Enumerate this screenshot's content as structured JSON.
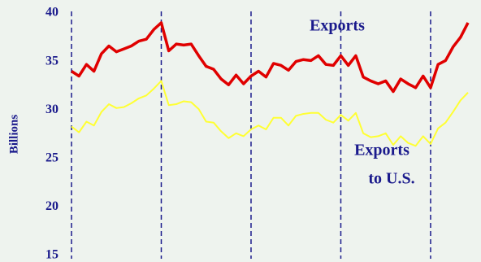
{
  "chart_data": {
    "type": "line",
    "ylabel": "Billions",
    "annotations": [
      "Exports",
      "Exports",
      "to U.S."
    ],
    "x": [
      0,
      1,
      2,
      3,
      4,
      5,
      6,
      7,
      8,
      9,
      10,
      11,
      12,
      13,
      14,
      15,
      16,
      17,
      18,
      19,
      20,
      21,
      22,
      23,
      24,
      25,
      26,
      27,
      28,
      29,
      30,
      31,
      32,
      33,
      34,
      35,
      36,
      37,
      38,
      39,
      40,
      41,
      42,
      43,
      44,
      45,
      46,
      47,
      48,
      49,
      50,
      51,
      52,
      53
    ],
    "xlim": [
      0,
      53
    ],
    "xticks": [
      0,
      12,
      24,
      36,
      48
    ],
    "xgrid": "dashed",
    "ylim": [
      15,
      40
    ],
    "yticks": [
      15,
      20,
      25,
      30,
      35,
      40
    ],
    "series": [
      {
        "color": "#e00000",
        "values": [
          34.0,
          33.5,
          34.7,
          34.0,
          35.8,
          36.6,
          36.0,
          36.3,
          36.6,
          37.1,
          37.3,
          38.3,
          39.0,
          36.1,
          36.8,
          36.7,
          36.8,
          35.6,
          34.5,
          34.2,
          33.2,
          32.6,
          33.6,
          32.7,
          33.5,
          34.0,
          33.4,
          34.8,
          34.6,
          34.1,
          35.0,
          35.2,
          35.1,
          35.6,
          34.7,
          34.6,
          35.6,
          34.6,
          35.6,
          33.4,
          33.0,
          32.7,
          33.0,
          31.9,
          33.2,
          32.7,
          32.3,
          33.5,
          32.3,
          34.7,
          35.1,
          36.5,
          37.5,
          39.0
        ]
      },
      {
        "color": "#ffff33",
        "values": [
          28.3,
          27.7,
          28.8,
          28.4,
          29.8,
          30.6,
          30.2,
          30.3,
          30.7,
          31.2,
          31.5,
          32.2,
          33.0,
          30.5,
          30.6,
          30.9,
          30.8,
          30.1,
          28.8,
          28.7,
          27.8,
          27.1,
          27.6,
          27.3,
          28.0,
          28.4,
          28.0,
          29.2,
          29.2,
          28.4,
          29.4,
          29.6,
          29.7,
          29.7,
          29.0,
          28.7,
          29.5,
          28.9,
          29.7,
          27.6,
          27.2,
          27.3,
          27.6,
          26.4,
          27.3,
          26.6,
          26.3,
          27.3,
          26.5,
          28.1,
          28.7,
          29.8,
          31.0,
          31.8
        ]
      }
    ]
  }
}
